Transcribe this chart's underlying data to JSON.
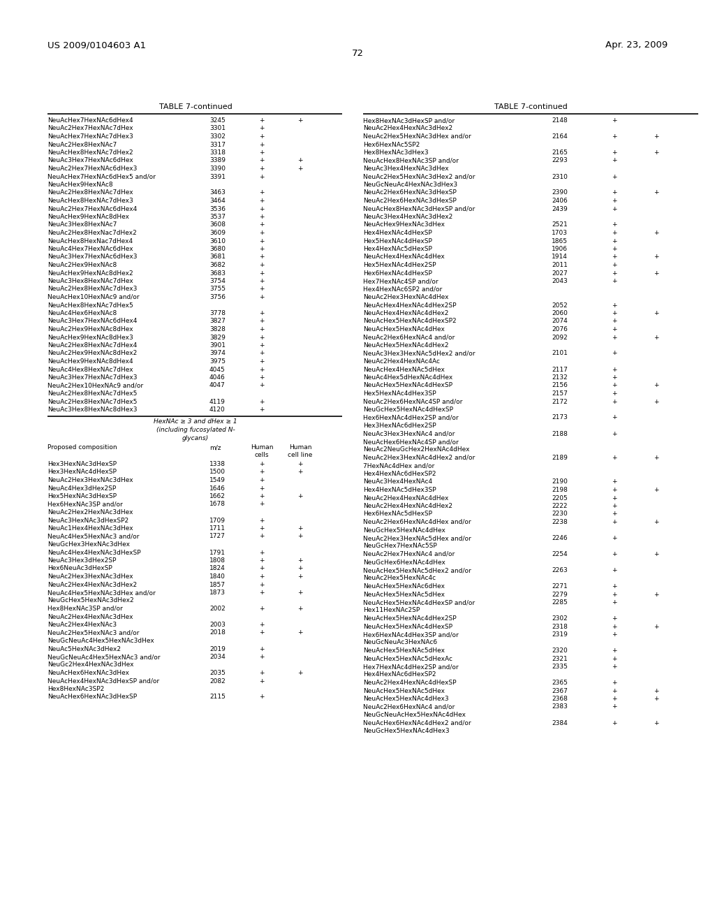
{
  "header_left": "US 2009/0104603 A1",
  "header_right": "Apr. 23, 2009",
  "page_number": "72",
  "background_color": "#ffffff",
  "font_small": 6.5,
  "font_med": 8.0,
  "font_large": 9.5,
  "left_table_title": "TABLE 7-continued",
  "right_table_title": "TABLE 7-continued",
  "left_rows_upper": [
    [
      "NeuAcHex7HexNAc6dHex4",
      "3245",
      "+",
      "+"
    ],
    [
      "NeuAc2Hex7HexNAc7dHex",
      "3301",
      "+",
      ""
    ],
    [
      "NeuAcHex7HexNAc7dHex3",
      "3302",
      "+",
      ""
    ],
    [
      "NeuAc2Hex8HexNAc7",
      "3317",
      "+",
      ""
    ],
    [
      "NeuAcHex8HexNAc7dHex2",
      "3318",
      "+",
      ""
    ],
    [
      "NeuAc3Hex7HexNAc6dHex",
      "3389",
      "+",
      "+"
    ],
    [
      "NeuAc2Hex7HexNAc6dHex3",
      "3390",
      "+",
      "+"
    ],
    [
      "NeuAcHex7HexNAc6dHex5 and/or",
      "3391",
      "+",
      ""
    ],
    [
      "NeuAcHex9HexNAc8",
      "",
      "",
      ""
    ],
    [
      "NeuAc2Hex8HexNAc7dHex",
      "3463",
      "+",
      ""
    ],
    [
      "NeuAcHex8HexNAc7dHex3",
      "3464",
      "+",
      ""
    ],
    [
      "NeuAc2Hex7HexNAc6dHex4",
      "3536",
      "+",
      ""
    ],
    [
      "NeuAcHex9HexNAc8dHex",
      "3537",
      "+",
      ""
    ],
    [
      "NeuAc3Hex8HexNAc7",
      "3608",
      "+",
      ""
    ],
    [
      "NeuAc2Hex8HexNac7dHex2",
      "3609",
      "+",
      ""
    ],
    [
      "NeuAcHex8HexNac7dHex4",
      "3610",
      "+",
      ""
    ],
    [
      "NeuAc4Hex7HexNAc6dHex",
      "3680",
      "+",
      ""
    ],
    [
      "NeuAc3Hex7HexNAc6dHex3",
      "3681",
      "+",
      ""
    ],
    [
      "NeuAc2Hex9HexNAc8",
      "3682",
      "+",
      ""
    ],
    [
      "NeuAcHex9HexNAc8dHex2",
      "3683",
      "+",
      ""
    ],
    [
      "NeuAc3Hex8HexNAc7dHex",
      "3754",
      "+",
      ""
    ],
    [
      "NeuAc2Hex8HexNAc7dHex3",
      "3755",
      "+",
      ""
    ],
    [
      "NeuAcHex10HexNAc9 and/or",
      "3756",
      "+",
      ""
    ],
    [
      "NeuAcHex8HexNAc7dHex5",
      "",
      "",
      ""
    ],
    [
      "NeuAc4Hex6HexNAc8",
      "3778",
      "+",
      ""
    ],
    [
      "NeuAc3Hex7HexNAc6dHex4",
      "3827",
      "+",
      ""
    ],
    [
      "NeuAc2Hex9HexNAc8dHex",
      "3828",
      "+",
      ""
    ],
    [
      "NeuAcHex9HexNAc8dHex3",
      "3829",
      "+",
      ""
    ],
    [
      "NeuAc2Hex8HexNAc7dHex4",
      "3901",
      "+",
      ""
    ],
    [
      "NeuAc2Hex9HexNAc8dHex2",
      "3974",
      "+",
      ""
    ],
    [
      "NeuAcHex9HexNAc8dHex4",
      "3975",
      "+",
      ""
    ],
    [
      "NeuAc4Hex8HexNAc7dHex",
      "4045",
      "+",
      ""
    ],
    [
      "NeuAc3Hex7HexNAc7dHex3",
      "4046",
      "+",
      ""
    ],
    [
      "NeuAc2Hex10HexNAc9 and/or",
      "4047",
      "+",
      ""
    ],
    [
      "NeuAc2Hex8HexNAc7dHex5",
      "",
      "",
      ""
    ],
    [
      "NeuAc2Hex8HexNAc7dHex5",
      "4119",
      "+",
      ""
    ],
    [
      "NeuAc3Hex8HexNAc8dHex3",
      "4120",
      "+",
      ""
    ]
  ],
  "left_rows_lower": [
    [
      "Hex3HexNAc3dHexSP",
      "1338",
      "+",
      "+"
    ],
    [
      "Hex3HexNAc4dHexSP",
      "1500",
      "+",
      "+"
    ],
    [
      "NeuAc2Hex3HexNAc3dHex",
      "1549",
      "+",
      ""
    ],
    [
      "NeuAc4Hex3dHex2SP",
      "1646",
      "+",
      ""
    ],
    [
      "Hex5HexNAc3dHexSP",
      "1662",
      "+",
      "+"
    ],
    [
      "Hex6HexNAc3SP and/or",
      "1678",
      "+",
      ""
    ],
    [
      "NeuAc2Hex2HexNAc3dHex",
      "",
      "",
      ""
    ],
    [
      "NeuAc3HexNAc3dHexSP2",
      "1709",
      "+",
      ""
    ],
    [
      "NeuAc1Hex4HexNAc3dHex",
      "1711",
      "+",
      "+"
    ],
    [
      "NeuAc4Hex5HexNAc3 and/or",
      "1727",
      "+",
      "+"
    ],
    [
      "NeuGcHex3HexNAc3dHex",
      "",
      "",
      ""
    ],
    [
      "NeuAc4Hex4HexNAc3dHexSP",
      "1791",
      "+",
      ""
    ],
    [
      "NeuAc3Hex3dHex2SP",
      "1808",
      "+",
      "+"
    ],
    [
      "Hex6NeuAc3dHexSP",
      "1824",
      "+",
      "+"
    ],
    [
      "NeuAc2Hex3HexNAc3dHex",
      "1840",
      "+",
      "+"
    ],
    [
      "NeuAc2Hex4HexNAc3dHex2",
      "1857",
      "+",
      ""
    ],
    [
      "NeuAc4Hex5HexNAc3dHex and/or",
      "1873",
      "+",
      "+"
    ],
    [
      "NeuGcHex5HexNAc3dHex2",
      "",
      "",
      ""
    ],
    [
      "Hex8HexNAc3SP and/or",
      "2002",
      "+",
      "+"
    ],
    [
      "NeuAc2Hex4HexNAc3dHex",
      "",
      "",
      ""
    ],
    [
      "NeuAc2Hex4HexNAc3",
      "2003",
      "+",
      ""
    ],
    [
      "NeuAc2Hex5HexNAc3 and/or",
      "2018",
      "+",
      "+"
    ],
    [
      "NeuGcNeuAc4Hex5HexNAc3dHex",
      "",
      "",
      ""
    ],
    [
      "NeuAc5HexNAc3dHex2",
      "2019",
      "+",
      ""
    ],
    [
      "NeuGcNeuAc4Hex5HexNAc3 and/or",
      "2034",
      "+",
      ""
    ],
    [
      "NeuGc2Hex4HexNAc3dHex",
      "",
      "",
      ""
    ],
    [
      "NeuAcHex6HexNAc3dHex",
      "2035",
      "+",
      "+"
    ],
    [
      "NeuAcHex4HexNAc3dHexSP and/or",
      "2082",
      "+",
      ""
    ],
    [
      "Hex8HexNAc3SP2",
      "",
      "",
      ""
    ],
    [
      "NeuAcHex6HexNAc3dHexSP",
      "2115",
      "+",
      ""
    ]
  ],
  "right_rows": [
    [
      "Hex8HexNAc3dHexSP and/or",
      "2148",
      "+",
      ""
    ],
    [
      "NeuAc2Hex4HexNAc3dHex2",
      "",
      "",
      ""
    ],
    [
      "NeuAc2Hex5HexNAc3dHex and/or",
      "2164",
      "+",
      "+"
    ],
    [
      "Hex6HexNAc5SP2",
      "",
      "",
      ""
    ],
    [
      "Hex8HexNAc3dHex3",
      "2165",
      "+",
      "+"
    ],
    [
      "NeuAcHex8HexNAc3SP and/or",
      "2293",
      "+",
      ""
    ],
    [
      "NeuAc3Hex4HexNAc3dHex",
      "",
      "",
      ""
    ],
    [
      "NeuAc2Hex5HexNAc3dHex2 and/or",
      "2310",
      "+",
      ""
    ],
    [
      "NeuGcNeuAc4HexNAc3dHex3",
      "",
      "",
      ""
    ],
    [
      "NeuAc2Hex6HexNAc3dHexSP",
      "2390",
      "+",
      "+"
    ],
    [
      "NeuAc2Hex6HexNAc3dHexSP",
      "2406",
      "+",
      ""
    ],
    [
      "NeuAcHex8HexNAc3dHexSP and/or",
      "2439",
      "+",
      ""
    ],
    [
      "NeuAc3Hex4HexNAc3dHex2",
      "",
      "",
      ""
    ],
    [
      "NeuAcHex9HexNAc3dHex",
      "2521",
      "+",
      ""
    ],
    [
      "Hex4HexNAc4dHexSP",
      "1703",
      "+",
      "+"
    ],
    [
      "Hex5HexNAc4dHexSP",
      "1865",
      "+",
      ""
    ],
    [
      "Hex4HexNAc5dHexSP",
      "1906",
      "+",
      ""
    ],
    [
      "NeuAcHex4HexNAc4dHex",
      "1914",
      "+",
      "+"
    ],
    [
      "Hex5HexNAc4dHex2SP",
      "2011",
      "+",
      ""
    ],
    [
      "Hex6HexNAc4dHexSP",
      "2027",
      "+",
      "+"
    ],
    [
      "Hex7HexNAc4SP and/or",
      "2043",
      "+",
      ""
    ],
    [
      "Hex4HexNAc6SP2 and/or",
      "",
      "",
      ""
    ],
    [
      "NeuAc2Hex3HexNAc4dHex",
      "",
      "",
      ""
    ],
    [
      "NeuAcHex4HexNAc4dHex2SP",
      "2052",
      "+",
      ""
    ],
    [
      "NeuAcHex4HexNAc4dHex2",
      "2060",
      "+",
      "+"
    ],
    [
      "NeuAcHex5HexNAc4dHexSP2",
      "2074",
      "+",
      ""
    ],
    [
      "NeuAcHex5HexNAc4dHex",
      "2076",
      "+",
      ""
    ],
    [
      "NeuAc2Hex6HexNAc4 and/or",
      "2092",
      "+",
      "+"
    ],
    [
      "NeuAcHex5HexNAc4dHex2",
      "",
      "",
      ""
    ],
    [
      "NeuAc3Hex3HexNAc5dHex2 and/or",
      "2101",
      "+",
      ""
    ],
    [
      "NeuAc2Hex4HexNAc4Ac",
      "",
      "",
      ""
    ],
    [
      "NeuAcHex4HexNAc5dHex",
      "2117",
      "+",
      ""
    ],
    [
      "NeuAc4Hex5dHexNAc4dHex",
      "2132",
      "+",
      ""
    ],
    [
      "NeuAcHex5HexNAc4dHexSP",
      "2156",
      "+",
      "+"
    ],
    [
      "Hex5HexNAc4dHex3SP",
      "2157",
      "+",
      ""
    ],
    [
      "NeuAc2Hex6HexNAc4SP and/or",
      "2172",
      "+",
      "+"
    ],
    [
      "NeuGcHex5HexNAc4dHexSP",
      "",
      "",
      ""
    ],
    [
      "Hex6HexNAc4dHex2SP and/or",
      "2173",
      "+",
      ""
    ],
    [
      "Hex3HexNAc6dHex2SP",
      "",
      "",
      ""
    ],
    [
      "NeuAc3Hex3HexNAc4 and/or",
      "2188",
      "+",
      ""
    ],
    [
      "NeuAcHex6HexNAc4SP and/or",
      "",
      "",
      ""
    ],
    [
      "NeuAc2NeuGcHex2HexNAc4dHex",
      "",
      "",
      ""
    ],
    [
      "NeuAc2Hex3HexNAc4dHex2 and/or",
      "2189",
      "+",
      "+"
    ],
    [
      "7HexNAc4dHex and/or",
      "",
      "",
      ""
    ],
    [
      "Hex4HexNAc6dHexSP2",
      "",
      "",
      ""
    ],
    [
      "NeuAc3Hex4HexNAc4",
      "2190",
      "+",
      ""
    ],
    [
      "Hex4HexNAc5dHex3SP",
      "2198",
      "+",
      "+"
    ],
    [
      "NeuAc2Hex4HexNAc4dHex",
      "2205",
      "+",
      ""
    ],
    [
      "NeuAc2Hex4HexNAc4dHex2",
      "2222",
      "+",
      ""
    ],
    [
      "Hex6HexNAc5dHexSP",
      "2230",
      "+",
      ""
    ],
    [
      "NeuAc2Hex6HexNAc4dHex and/or",
      "2238",
      "+",
      "+"
    ],
    [
      "NeuGcHex5HexNAc4dHex",
      "",
      "",
      ""
    ],
    [
      "NeuAc2Hex3HexNAc5dHex and/or",
      "2246",
      "+",
      ""
    ],
    [
      "NeuGcHex7HexNAc5SP",
      "",
      "",
      ""
    ],
    [
      "NeuAc2Hex7HexNAc4 and/or",
      "2254",
      "+",
      "+"
    ],
    [
      "NeuGcHex6HexNAc4dHex",
      "",
      "",
      ""
    ],
    [
      "NeuAcHex5HexNAc5dHex2 and/or",
      "2263",
      "+",
      ""
    ],
    [
      "NeuAc2Hex5HexNAc4c",
      "",
      "",
      ""
    ],
    [
      "NeuAcHex5HexNAc6dHex",
      "2271",
      "+",
      ""
    ],
    [
      "NeuAcHex5HexNAc5dHex",
      "2279",
      "+",
      "+"
    ],
    [
      "NeuAcHex5HexNAc4dHexSP and/or",
      "2285",
      "+",
      ""
    ],
    [
      "Hex11HexNAc2SP",
      "",
      "",
      ""
    ],
    [
      "NeuAcHex5HexNAc4dHex2SP",
      "2302",
      "+",
      ""
    ],
    [
      "NeuAcHex5HexNAc4dHexSP",
      "2318",
      "+",
      "+"
    ],
    [
      "Hex6HexNAc4dHex3SP and/or",
      "2319",
      "+",
      ""
    ],
    [
      "NeuGcNeuAc3HexNAc6",
      "",
      "",
      ""
    ],
    [
      "NeuAcHex5HexNAc5dHex",
      "2320",
      "+",
      ""
    ],
    [
      "NeuAcHex5HexNAc5dHexAc",
      "2321",
      "+",
      ""
    ],
    [
      "Hex7HexNAc4dHex2SP and/or",
      "2335",
      "+",
      ""
    ],
    [
      "Hex4HexNAc6dHexSP2",
      "",
      "",
      ""
    ],
    [
      "NeuAc2Hex4HexNAc4dHexSP",
      "2365",
      "+",
      ""
    ],
    [
      "NeuAcHex5HexNAc5dHex",
      "2367",
      "+",
      "+"
    ],
    [
      "NeuAcHex5HexNAc4dHex3",
      "2368",
      "+",
      "+"
    ],
    [
      "NeuAc2Hex6HexNAc4 and/or",
      "2383",
      "+",
      ""
    ],
    [
      "NeuGcNeuAcHex5HexNAc4dHex",
      "",
      "",
      ""
    ],
    [
      "NeuAcHex6HexNAc4dHex2 and/or",
      "2384",
      "+",
      "+"
    ],
    [
      "NeuGcHex5HexNAc4dHex3",
      "",
      "",
      ""
    ]
  ]
}
